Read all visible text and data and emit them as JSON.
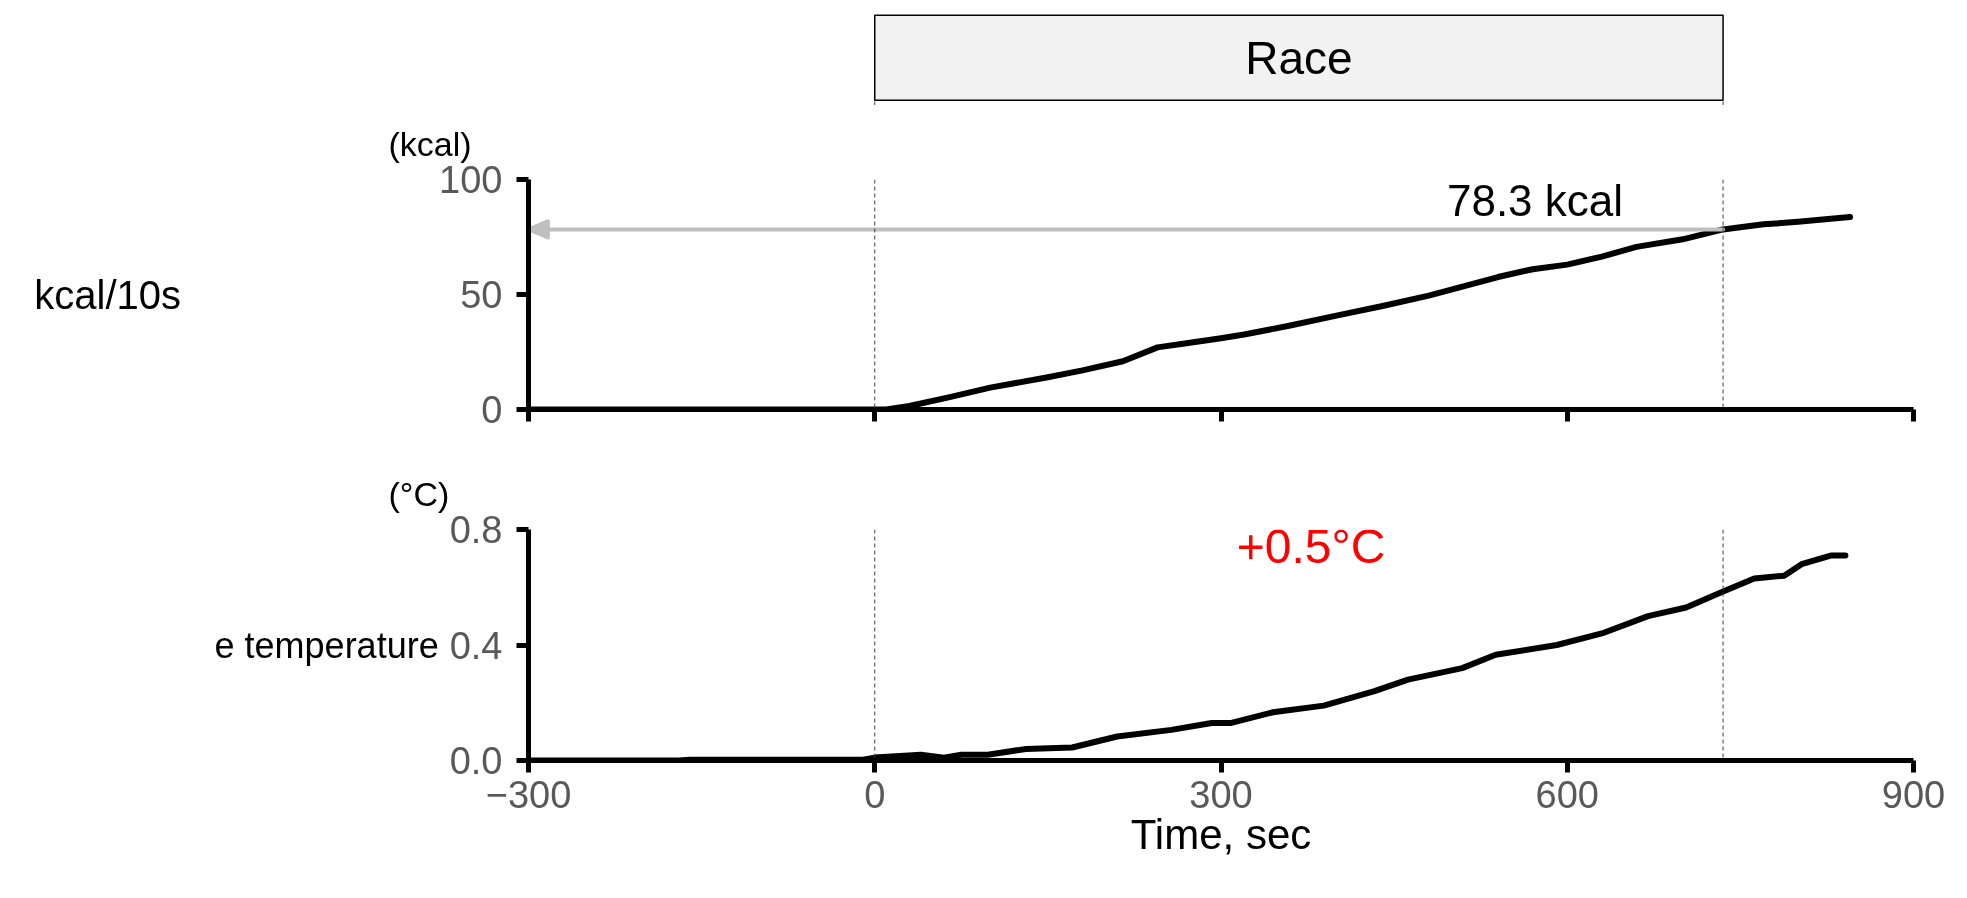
{
  "chart_data": [
    {
      "type": "line",
      "ylabel": "kcal/10s",
      "x": [
        -300,
        0,
        10,
        30,
        65,
        100,
        150,
        180,
        215,
        245,
        270,
        300,
        320,
        360,
        400,
        440,
        480,
        510,
        540,
        570,
        600,
        630,
        660,
        700,
        735,
        770,
        800,
        845
      ],
      "series": [
        {
          "color": "#000000",
          "values": [
            0,
            0,
            0,
            1.5,
            5.4,
            9.5,
            14,
            17,
            21,
            27,
            28.8,
            31,
            32.6,
            36.5,
            40.8,
            45,
            49.5,
            53.5,
            57.6,
            61,
            63,
            66.5,
            70.7,
            74,
            78.3,
            80.5,
            81.6,
            83.7
          ]
        }
      ],
      "xlim": [
        -300,
        900
      ],
      "xticks": [
        -300,
        0,
        300,
        600,
        900
      ],
      "ylim": [
        0,
        100
      ],
      "yticks": [
        0,
        50,
        100
      ],
      "tick_labels": "y",
      "grid": false,
      "ref_lines": [
        {
          "axis": "x",
          "value": 0,
          "line_style": "dashed",
          "color": "#404040"
        },
        {
          "axis": "x",
          "value": 735,
          "line_style": "dashed",
          "color": "#404040"
        },
        {
          "axis": "y",
          "value": 78.3,
          "label": "78.3 kcal",
          "color": "#bfbfbf"
        }
      ],
      "annotations": [
        "(kcal)",
        "Race"
      ]
    },
    {
      "type": "line",
      "ylabel": "e temperature",
      "xlabel": "Time, sec",
      "x": [
        -300,
        -170,
        -160,
        -10,
        0,
        40,
        60,
        75,
        98,
        131,
        171,
        210,
        257,
        292,
        309,
        345,
        389,
        433,
        462,
        509,
        538,
        591,
        630,
        670,
        703,
        732,
        762,
        788,
        803,
        829,
        841
      ],
      "series": [
        {
          "color": "#000000",
          "values": [
            0,
            0,
            0.003,
            0.003,
            0.01,
            0.02,
            0.01,
            0.02,
            0.02,
            0.04,
            0.045,
            0.083,
            0.106,
            0.13,
            0.13,
            0.167,
            0.19,
            0.24,
            0.28,
            0.32,
            0.366,
            0.4,
            0.44,
            0.5,
            0.53,
            0.58,
            0.63,
            0.64,
            0.68,
            0.71,
            0.71
          ]
        }
      ],
      "xlim": [
        -300,
        900
      ],
      "xticks": [
        -300,
        0,
        300,
        600,
        900
      ],
      "ylim": [
        0,
        0.8
      ],
      "yticks": [
        {
          "value": 0,
          "label": "0.0"
        },
        0.4,
        0.8
      ],
      "grid": false,
      "ref_lines": [
        {
          "axis": "x",
          "value": 0,
          "line_style": "dashed",
          "color": "#404040"
        },
        {
          "axis": "x",
          "value": 735,
          "line_style": "dashed",
          "color": "#404040"
        }
      ],
      "annotations": [
        "(°C)",
        "+0.5°C"
      ]
    }
  ]
}
